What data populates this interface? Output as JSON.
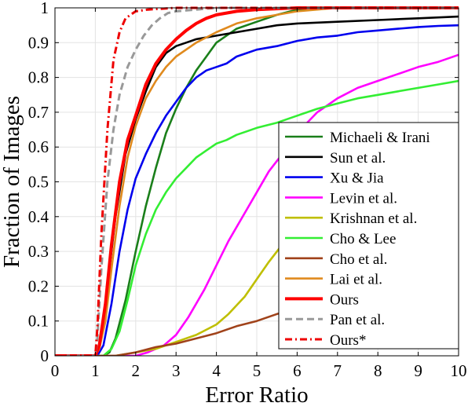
{
  "chart_data": {
    "type": "line",
    "title": "",
    "xlabel": "Error Ratio",
    "ylabel": "Fraction of Images",
    "xlim": [
      0,
      10
    ],
    "ylim": [
      0,
      1
    ],
    "xticks": [
      0,
      1,
      2,
      3,
      4,
      5,
      6,
      7,
      8,
      9,
      10
    ],
    "yticks": [
      0,
      0.1,
      0.2,
      0.3,
      0.4,
      0.5,
      0.6,
      0.7,
      0.8,
      0.9,
      1
    ],
    "ytick_labels": [
      "0",
      "0.1",
      "0.2",
      "0.3",
      "0.4",
      "0.5",
      "0.6",
      "0.7",
      "0.8",
      "0.9",
      "1"
    ],
    "grid": true,
    "legend_position": "right",
    "series": [
      {
        "name": "Michaeli & Irani",
        "color": "#1a7f1a",
        "dash": "solid",
        "points": [
          [
            0,
            0
          ],
          [
            1.2,
            0
          ],
          [
            1.35,
            0.01
          ],
          [
            1.5,
            0.05
          ],
          [
            1.75,
            0.16
          ],
          [
            2,
            0.3
          ],
          [
            2.25,
            0.43
          ],
          [
            2.5,
            0.54
          ],
          [
            2.75,
            0.64
          ],
          [
            3,
            0.71
          ],
          [
            3.25,
            0.77
          ],
          [
            3.5,
            0.82
          ],
          [
            3.75,
            0.86
          ],
          [
            4,
            0.9
          ],
          [
            4.25,
            0.92
          ],
          [
            4.5,
            0.94
          ],
          [
            5,
            0.96
          ],
          [
            5.5,
            0.98
          ],
          [
            6,
            0.995
          ],
          [
            7,
            1
          ],
          [
            10,
            1
          ]
        ]
      },
      {
        "name": "Sun et al.",
        "color": "#000000",
        "dash": "solid",
        "points": [
          [
            0,
            0
          ],
          [
            1,
            0
          ],
          [
            1.15,
            0.05
          ],
          [
            1.3,
            0.2
          ],
          [
            1.5,
            0.4
          ],
          [
            1.75,
            0.58
          ],
          [
            2,
            0.68
          ],
          [
            2.25,
            0.76
          ],
          [
            2.5,
            0.83
          ],
          [
            2.75,
            0.87
          ],
          [
            3,
            0.89
          ],
          [
            3.25,
            0.9
          ],
          [
            3.5,
            0.91
          ],
          [
            4,
            0.92
          ],
          [
            4.5,
            0.93
          ],
          [
            5,
            0.94
          ],
          [
            5.5,
            0.95
          ],
          [
            6,
            0.955
          ],
          [
            7,
            0.96
          ],
          [
            8,
            0.965
          ],
          [
            9,
            0.97
          ],
          [
            10,
            0.975
          ]
        ]
      },
      {
        "name": "Xu & Jia",
        "color": "#0000ee",
        "dash": "solid",
        "points": [
          [
            0,
            0
          ],
          [
            1.05,
            0
          ],
          [
            1.2,
            0.03
          ],
          [
            1.4,
            0.15
          ],
          [
            1.6,
            0.3
          ],
          [
            1.8,
            0.42
          ],
          [
            2,
            0.51
          ],
          [
            2.25,
            0.58
          ],
          [
            2.5,
            0.64
          ],
          [
            2.75,
            0.69
          ],
          [
            3,
            0.73
          ],
          [
            3.25,
            0.77
          ],
          [
            3.5,
            0.8
          ],
          [
            3.75,
            0.82
          ],
          [
            4,
            0.83
          ],
          [
            4.25,
            0.84
          ],
          [
            4.5,
            0.86
          ],
          [
            4.75,
            0.87
          ],
          [
            5,
            0.88
          ],
          [
            5.5,
            0.89
          ],
          [
            6,
            0.905
          ],
          [
            6.5,
            0.915
          ],
          [
            7,
            0.92
          ],
          [
            7.5,
            0.93
          ],
          [
            8,
            0.935
          ],
          [
            8.5,
            0.94
          ],
          [
            9,
            0.945
          ],
          [
            9.5,
            0.948
          ],
          [
            10,
            0.95
          ]
        ]
      },
      {
        "name": "Levin et al.",
        "color": "#ff00ff",
        "dash": "solid",
        "points": [
          [
            0,
            0
          ],
          [
            2,
            0
          ],
          [
            2.3,
            0.01
          ],
          [
            2.7,
            0.03
          ],
          [
            3,
            0.06
          ],
          [
            3.3,
            0.11
          ],
          [
            3.7,
            0.19
          ],
          [
            4,
            0.26
          ],
          [
            4.3,
            0.33
          ],
          [
            4.7,
            0.41
          ],
          [
            5,
            0.47
          ],
          [
            5.3,
            0.53
          ],
          [
            5.7,
            0.59
          ],
          [
            6,
            0.64
          ],
          [
            6.5,
            0.7
          ],
          [
            7,
            0.74
          ],
          [
            7.5,
            0.77
          ],
          [
            8,
            0.79
          ],
          [
            8.5,
            0.81
          ],
          [
            9,
            0.83
          ],
          [
            9.5,
            0.845
          ],
          [
            10,
            0.865
          ]
        ]
      },
      {
        "name": "Krishnan et al.",
        "color": "#bfbf00",
        "dash": "solid",
        "points": [
          [
            0,
            0
          ],
          [
            1.5,
            0
          ],
          [
            2,
            0.01
          ],
          [
            2.5,
            0.02
          ],
          [
            3,
            0.04
          ],
          [
            3.5,
            0.06
          ],
          [
            4,
            0.09
          ],
          [
            4.3,
            0.12
          ],
          [
            4.7,
            0.17
          ],
          [
            5,
            0.22
          ],
          [
            5.3,
            0.27
          ],
          [
            5.7,
            0.33
          ],
          [
            6,
            0.37
          ],
          [
            6.5,
            0.42
          ],
          [
            7,
            0.47
          ],
          [
            7.5,
            0.51
          ],
          [
            8,
            0.55
          ],
          [
            8.5,
            0.58
          ],
          [
            9,
            0.61
          ],
          [
            9.5,
            0.635
          ],
          [
            10,
            0.66
          ]
        ]
      },
      {
        "name": "Cho & Lee",
        "color": "#33ee33",
        "dash": "solid",
        "points": [
          [
            0,
            0
          ],
          [
            1.2,
            0
          ],
          [
            1.4,
            0.02
          ],
          [
            1.6,
            0.07
          ],
          [
            1.8,
            0.16
          ],
          [
            2,
            0.26
          ],
          [
            2.25,
            0.35
          ],
          [
            2.5,
            0.42
          ],
          [
            2.75,
            0.47
          ],
          [
            3,
            0.51
          ],
          [
            3.25,
            0.54
          ],
          [
            3.5,
            0.57
          ],
          [
            3.75,
            0.59
          ],
          [
            4,
            0.61
          ],
          [
            4.25,
            0.62
          ],
          [
            4.5,
            0.635
          ],
          [
            4.75,
            0.645
          ],
          [
            5,
            0.655
          ],
          [
            5.5,
            0.67
          ],
          [
            6,
            0.69
          ],
          [
            6.5,
            0.71
          ],
          [
            7,
            0.725
          ],
          [
            7.5,
            0.74
          ],
          [
            8,
            0.75
          ],
          [
            8.5,
            0.76
          ],
          [
            9,
            0.77
          ],
          [
            9.5,
            0.78
          ],
          [
            10,
            0.79
          ]
        ]
      },
      {
        "name": "Cho et al.",
        "color": "#a0421a",
        "dash": "solid",
        "points": [
          [
            0,
            0
          ],
          [
            1.5,
            0
          ],
          [
            2,
            0.01
          ],
          [
            2.5,
            0.025
          ],
          [
            3,
            0.035
          ],
          [
            3.5,
            0.05
          ],
          [
            4,
            0.065
          ],
          [
            4.5,
            0.085
          ],
          [
            5,
            0.1
          ],
          [
            5.5,
            0.12
          ],
          [
            6,
            0.135
          ],
          [
            6.5,
            0.15
          ],
          [
            7,
            0.165
          ],
          [
            7.5,
            0.18
          ],
          [
            8,
            0.19
          ],
          [
            8.5,
            0.205
          ],
          [
            9,
            0.215
          ],
          [
            9.5,
            0.23
          ],
          [
            10,
            0.245
          ]
        ]
      },
      {
        "name": "Lai et al.",
        "color": "#e08a1e",
        "dash": "solid",
        "points": [
          [
            0,
            0
          ],
          [
            1,
            0
          ],
          [
            1.1,
            0.02
          ],
          [
            1.25,
            0.1
          ],
          [
            1.4,
            0.25
          ],
          [
            1.6,
            0.43
          ],
          [
            1.8,
            0.57
          ],
          [
            2,
            0.66
          ],
          [
            2.25,
            0.74
          ],
          [
            2.5,
            0.79
          ],
          [
            2.75,
            0.83
          ],
          [
            3,
            0.86
          ],
          [
            3.5,
            0.9
          ],
          [
            4,
            0.93
          ],
          [
            4.5,
            0.955
          ],
          [
            5,
            0.97
          ],
          [
            5.5,
            0.98
          ],
          [
            6,
            0.99
          ],
          [
            6.5,
            0.995
          ],
          [
            7,
            1
          ],
          [
            10,
            1
          ]
        ]
      },
      {
        "name": "Ours",
        "color": "#ff0000",
        "dash": "solid",
        "points": [
          [
            0,
            0
          ],
          [
            1,
            0
          ],
          [
            1.1,
            0.03
          ],
          [
            1.25,
            0.15
          ],
          [
            1.4,
            0.32
          ],
          [
            1.6,
            0.5
          ],
          [
            1.8,
            0.62
          ],
          [
            2,
            0.69
          ],
          [
            2.25,
            0.78
          ],
          [
            2.5,
            0.84
          ],
          [
            2.75,
            0.88
          ],
          [
            3,
            0.91
          ],
          [
            3.25,
            0.935
          ],
          [
            3.5,
            0.955
          ],
          [
            3.75,
            0.97
          ],
          [
            4,
            0.98
          ],
          [
            4.5,
            0.99
          ],
          [
            5,
            0.995
          ],
          [
            6,
            1
          ],
          [
            10,
            1
          ]
        ]
      },
      {
        "name": "Pan et al.",
        "color": "#999999",
        "dash": "dash",
        "points": [
          [
            0,
            0
          ],
          [
            1,
            0
          ],
          [
            1.05,
            0.05
          ],
          [
            1.15,
            0.25
          ],
          [
            1.3,
            0.5
          ],
          [
            1.45,
            0.65
          ],
          [
            1.6,
            0.75
          ],
          [
            1.8,
            0.83
          ],
          [
            2,
            0.88
          ],
          [
            2.2,
            0.92
          ],
          [
            2.4,
            0.95
          ],
          [
            2.6,
            0.97
          ],
          [
            2.8,
            0.985
          ],
          [
            3,
            0.99
          ],
          [
            3.5,
            0.995
          ],
          [
            4,
            1
          ],
          [
            10,
            1
          ]
        ]
      },
      {
        "name": "Ours*",
        "color": "#ee0000",
        "dash": "dashdot",
        "points": [
          [
            0,
            0
          ],
          [
            1,
            0
          ],
          [
            1.05,
            0.08
          ],
          [
            1.15,
            0.35
          ],
          [
            1.3,
            0.65
          ],
          [
            1.45,
            0.85
          ],
          [
            1.6,
            0.93
          ],
          [
            1.75,
            0.97
          ],
          [
            2,
            0.99
          ],
          [
            2.3,
            0.995
          ],
          [
            3,
            1
          ],
          [
            10,
            1
          ]
        ]
      }
    ]
  }
}
